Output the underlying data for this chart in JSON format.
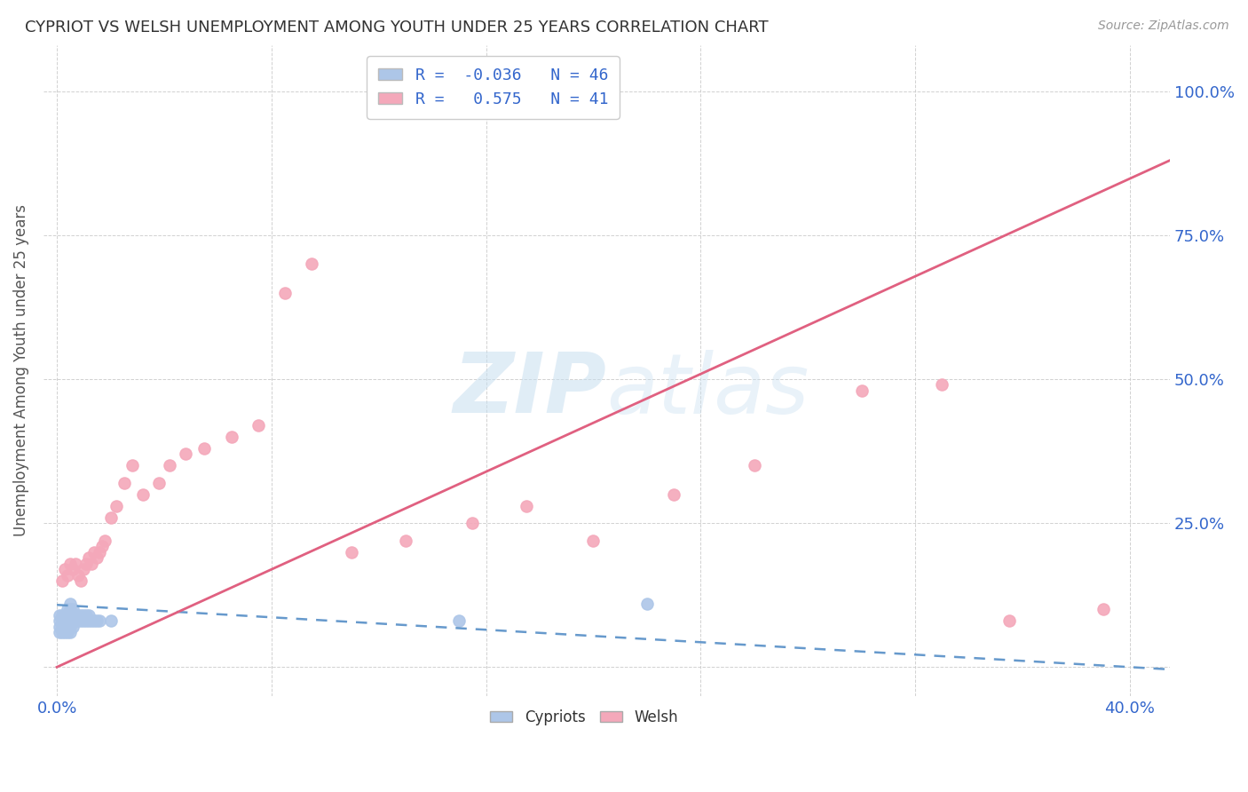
{
  "title": "CYPRIOT VS WELSH UNEMPLOYMENT AMONG YOUTH UNDER 25 YEARS CORRELATION CHART",
  "source": "Source: ZipAtlas.com",
  "ylabel": "Unemployment Among Youth under 25 years",
  "cypriot_color": "#adc6e8",
  "welsh_color": "#f4a8ba",
  "cypriot_line_color": "#6699cc",
  "welsh_line_color": "#e06080",
  "cypriot_R": -0.036,
  "cypriot_N": 46,
  "welsh_R": 0.575,
  "welsh_N": 41,
  "background_color": "#ffffff",
  "grid_color": "#cccccc",
  "cypriot_points_x": [
    0.001,
    0.001,
    0.001,
    0.001,
    0.002,
    0.002,
    0.002,
    0.002,
    0.003,
    0.003,
    0.003,
    0.003,
    0.004,
    0.004,
    0.004,
    0.004,
    0.004,
    0.005,
    0.005,
    0.005,
    0.005,
    0.005,
    0.005,
    0.006,
    0.006,
    0.006,
    0.006,
    0.007,
    0.007,
    0.008,
    0.008,
    0.009,
    0.009,
    0.01,
    0.01,
    0.011,
    0.011,
    0.012,
    0.012,
    0.013,
    0.014,
    0.015,
    0.016,
    0.02,
    0.15,
    0.22
  ],
  "cypriot_points_y": [
    0.06,
    0.07,
    0.08,
    0.09,
    0.06,
    0.07,
    0.08,
    0.09,
    0.06,
    0.07,
    0.08,
    0.09,
    0.06,
    0.07,
    0.08,
    0.09,
    0.1,
    0.06,
    0.07,
    0.08,
    0.09,
    0.1,
    0.11,
    0.07,
    0.08,
    0.09,
    0.1,
    0.08,
    0.09,
    0.08,
    0.09,
    0.08,
    0.09,
    0.08,
    0.09,
    0.08,
    0.09,
    0.08,
    0.09,
    0.08,
    0.08,
    0.08,
    0.08,
    0.08,
    0.08,
    0.11
  ],
  "welsh_points_x": [
    0.002,
    0.003,
    0.004,
    0.005,
    0.006,
    0.007,
    0.008,
    0.009,
    0.01,
    0.011,
    0.012,
    0.013,
    0.014,
    0.015,
    0.016,
    0.017,
    0.018,
    0.02,
    0.022,
    0.025,
    0.028,
    0.032,
    0.038,
    0.042,
    0.048,
    0.055,
    0.065,
    0.075,
    0.085,
    0.095,
    0.11,
    0.13,
    0.155,
    0.175,
    0.2,
    0.23,
    0.26,
    0.3,
    0.33,
    0.355,
    0.39
  ],
  "welsh_points_y": [
    0.15,
    0.17,
    0.16,
    0.18,
    0.17,
    0.18,
    0.16,
    0.15,
    0.17,
    0.18,
    0.19,
    0.18,
    0.2,
    0.19,
    0.2,
    0.21,
    0.22,
    0.26,
    0.28,
    0.32,
    0.35,
    0.3,
    0.32,
    0.35,
    0.37,
    0.38,
    0.4,
    0.42,
    0.65,
    0.7,
    0.2,
    0.22,
    0.25,
    0.28,
    0.22,
    0.3,
    0.35,
    0.48,
    0.49,
    0.08,
    0.1
  ],
  "xlim": [
    -0.005,
    0.415
  ],
  "ylim": [
    -0.05,
    1.08
  ],
  "x_tick_positions": [
    0.0,
    0.08,
    0.16,
    0.24,
    0.32,
    0.4
  ],
  "x_tick_labels": [
    "0.0%",
    "",
    "",
    "",
    "",
    "40.0%"
  ],
  "y_tick_positions": [
    0.0,
    0.25,
    0.5,
    0.75,
    1.0
  ],
  "y_tick_labels": [
    "",
    "25.0%",
    "50.0%",
    "75.0%",
    "100.0%"
  ]
}
